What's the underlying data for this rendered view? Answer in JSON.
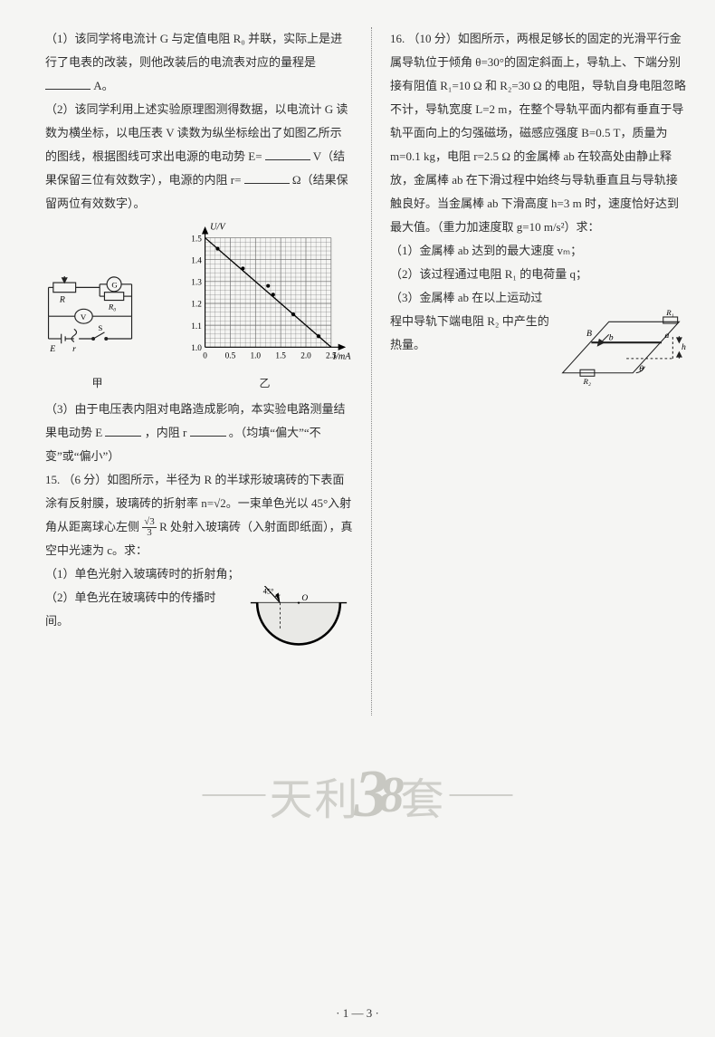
{
  "left": {
    "q1_p1": "（1）该同学将电流计 G 与定值电阻 R₀ 并联，实际上是进行了电表的改装，则他改装后的电流表对应的量程是",
    "q1_p1_unit": "A。",
    "q1_p2_a": "（2）该同学利用上述实验原理图测得数据，以电流计 G 读数为横坐标，以电压表 V 读数为纵坐标绘出了如图乙所示的图线，根据图线可求出电源的电动势 E=",
    "q1_p2_b": "V（结果保留三位有效数字），电源的内阻 r=",
    "q1_p2_c": "Ω（结果保留两位有效数字）。",
    "q1_p3_a": "（3）由于电压表内阻对电路造成影响，本实验电路测量结果电动势 E",
    "q1_p3_b": "，内阻 r",
    "q1_p3_c": "。（均填“偏大”“不变”或“偏小”）",
    "q15_a": "（6 分）如图所示，半径为 R 的半球形玻璃砖的下表面涂有反射膜，玻璃砖的折射率 n=√2。一束单色光以 45°入射角从距离球心左侧",
    "q15_b": "R 处射入玻璃砖（入射面即纸面），真空中光速为 c。求：",
    "q15_1": "（1）单色光射入玻璃砖时的折射角；",
    "q15_2": "（2）单色光在玻璃砖中的传播时间。",
    "q15_num": "15.",
    "circuit_caption": "甲",
    "graph_caption": "乙",
    "graph": {
      "ylabel": "U/V",
      "xlabel": "I/mA",
      "xmin": 0,
      "xmax": 2.5,
      "xtick_step": 0.5,
      "ymin": 1.0,
      "ymax": 1.5,
      "ytick_step": 0.1,
      "xticks": [
        "0",
        "0.5",
        "1.0",
        "1.5",
        "2.0",
        "2.5"
      ],
      "yticks": [
        "1.0",
        "1.1",
        "1.2",
        "1.3",
        "1.4",
        "1.5"
      ],
      "points": [
        [
          0.25,
          1.45
        ],
        [
          0.75,
          1.36
        ],
        [
          1.25,
          1.28
        ],
        [
          1.35,
          1.24
        ],
        [
          1.75,
          1.15
        ],
        [
          2.25,
          1.05
        ]
      ],
      "line_from": [
        0,
        1.5
      ],
      "line_to": [
        2.5,
        1.0
      ],
      "grid_color": "#666",
      "axis_color": "#000",
      "point_color": "#000"
    },
    "circuit_labels": {
      "R": "R",
      "G": "G",
      "R0": "R₀",
      "V": "V",
      "S": "S",
      "E": "E",
      "r": "r"
    },
    "semi": {
      "angle_label": "45°",
      "O": "O"
    },
    "frac_num": "√3",
    "frac_den": "3"
  },
  "right": {
    "q16_num": "16.",
    "q16_body": "（10 分）如图所示，两根足够长的固定的光滑平行金属导轨位于倾角 θ=30°的固定斜面上，导轨上、下端分别接有阻值 R₁=10 Ω 和 R₂=30 Ω 的电阻，导轨自身电阻忽略不计，导轨宽度 L=2 m，在整个导轨平面内都有垂直于导轨平面向上的匀强磁场，磁感应强度 B=0.5 T，质量为 m=0.1 kg，电阻 r=2.5 Ω 的金属棒 ab 在较高处由静止释放，金属棒 ab 在下滑过程中始终与导轨垂直且与导轨接触良好。当金属棒 ab 下滑高度 h=3 m 时，速度恰好达到最大值。（重力加速度取 g=10 m/s²）求：",
    "q16_1": "（1）金属棒 ab 达到的最大速度 vₘ；",
    "q16_2": "（2）该过程通过电阻 R₁ 的电荷量 q；",
    "q16_3": "（3）金属棒 ab 在以上运动过程中导轨下端电阻 R₂ 中产生的热量。",
    "incline": {
      "B": "B",
      "b": "b",
      "a": "a",
      "h": "h",
      "theta": "θ",
      "R1": "R₁",
      "R2": "R₂"
    }
  },
  "watermark": {
    "a": "天利",
    "b": "3",
    "c": "8",
    "d": "套"
  },
  "pagenum": "· 1 — 3 ·"
}
